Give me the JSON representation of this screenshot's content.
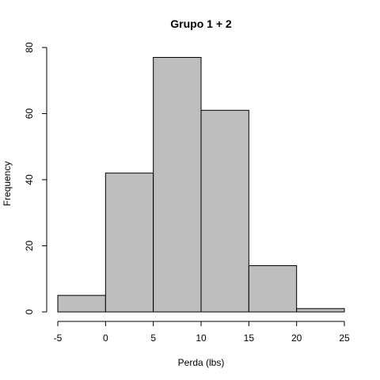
{
  "chart_data": {
    "type": "bar",
    "title": "Grupo 1 + 2",
    "xlabel": "Perda (lbs)",
    "ylabel": "Frequency",
    "bins": [
      {
        "start": -5,
        "end": 0,
        "count": 5
      },
      {
        "start": 0,
        "end": 5,
        "count": 42
      },
      {
        "start": 5,
        "end": 10,
        "count": 77
      },
      {
        "start": 10,
        "end": 15,
        "count": 61
      },
      {
        "start": 15,
        "end": 20,
        "count": 14
      },
      {
        "start": 20,
        "end": 25,
        "count": 1
      }
    ],
    "xlim": [
      -5,
      25
    ],
    "ylim": [
      0,
      80
    ],
    "xticks": [
      -5,
      0,
      5,
      10,
      15,
      20,
      25
    ],
    "yticks": [
      0,
      20,
      40,
      60,
      80
    ],
    "grid": false,
    "colors": {
      "bar_fill": "#bebebe",
      "bar_stroke": "#000000"
    }
  }
}
